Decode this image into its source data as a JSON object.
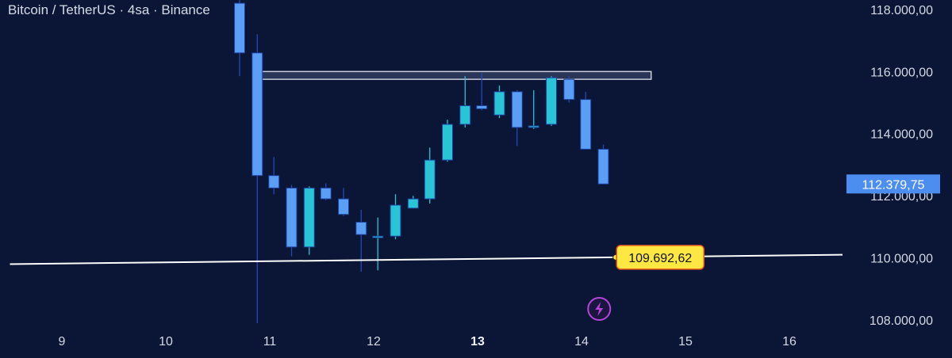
{
  "header": {
    "title": "Bitcoin / TetherUS · 4sa · Binance"
  },
  "chart_data": {
    "type": "candlestick",
    "symbol": "Bitcoin / TetherUS",
    "interval": "4sa",
    "exchange": "Binance",
    "y_axis": {
      "range": [
        107950,
        118150
      ],
      "ticks": [
        {
          "value": 118000,
          "label": "118.000,00"
        },
        {
          "value": 116000,
          "label": "116.000,00"
        },
        {
          "value": 114000,
          "label": "114.000,00"
        },
        {
          "value": 112000,
          "label": "112.000,00"
        },
        {
          "value": 110000,
          "label": "110.000,00"
        },
        {
          "value": 108000,
          "label": "108.000,00"
        }
      ]
    },
    "x_axis": {
      "range": [
        8.5,
        16.5
      ],
      "ticks": [
        {
          "value": 9,
          "label": "9",
          "bold": false
        },
        {
          "value": 10,
          "label": "10",
          "bold": false
        },
        {
          "value": 11,
          "label": "11",
          "bold": false
        },
        {
          "value": 12,
          "label": "12",
          "bold": false
        },
        {
          "value": 13,
          "label": "13",
          "bold": true
        },
        {
          "value": 14,
          "label": "14",
          "bold": false
        },
        {
          "value": 15,
          "label": "15",
          "bold": false
        },
        {
          "value": 16,
          "label": "16",
          "bold": false
        }
      ]
    },
    "candles": [
      {
        "t": 10.71,
        "o": 118200,
        "h": 118300,
        "l": 115850,
        "c": 116600
      },
      {
        "t": 10.88,
        "o": 116600,
        "h": 117200,
        "l": 107900,
        "c": 112650
      },
      {
        "t": 11.04,
        "o": 112650,
        "h": 113250,
        "l": 112050,
        "c": 112250
      },
      {
        "t": 11.21,
        "o": 112250,
        "h": 112350,
        "l": 110050,
        "c": 110350
      },
      {
        "t": 11.38,
        "o": 110350,
        "h": 112300,
        "l": 110100,
        "c": 112250
      },
      {
        "t": 11.54,
        "o": 112250,
        "h": 112400,
        "l": 111850,
        "c": 111900
      },
      {
        "t": 11.71,
        "o": 111900,
        "h": 112250,
        "l": 111350,
        "c": 111400
      },
      {
        "t": 11.88,
        "o": 111150,
        "h": 111550,
        "l": 109550,
        "c": 110750
      },
      {
        "t": 12.04,
        "o": 110700,
        "h": 111300,
        "l": 109600,
        "c": 110700
      },
      {
        "t": 12.21,
        "o": 110700,
        "h": 112050,
        "l": 110600,
        "c": 111700
      },
      {
        "t": 12.38,
        "o": 111600,
        "h": 112000,
        "l": 111600,
        "c": 111900
      },
      {
        "t": 12.54,
        "o": 111900,
        "h": 113550,
        "l": 111750,
        "c": 113150
      },
      {
        "t": 12.71,
        "o": 113150,
        "h": 114450,
        "l": 113100,
        "c": 114300
      },
      {
        "t": 12.88,
        "o": 114300,
        "h": 115850,
        "l": 114200,
        "c": 114900
      },
      {
        "t": 13.04,
        "o": 114900,
        "h": 115950,
        "l": 114750,
        "c": 114800
      },
      {
        "t": 13.21,
        "o": 114600,
        "h": 115550,
        "l": 114500,
        "c": 115350
      },
      {
        "t": 13.38,
        "o": 115350,
        "h": 115400,
        "l": 113600,
        "c": 114200
      },
      {
        "t": 13.54,
        "o": 114200,
        "h": 115400,
        "l": 114150,
        "c": 114250
      },
      {
        "t": 13.71,
        "o": 114300,
        "h": 115850,
        "l": 114250,
        "c": 115800
      },
      {
        "t": 13.88,
        "o": 115750,
        "h": 115850,
        "l": 115000,
        "c": 115100
      },
      {
        "t": 14.04,
        "o": 115100,
        "h": 115350,
        "l": 113500,
        "c": 113500
      },
      {
        "t": 14.21,
        "o": 113500,
        "h": 113650,
        "l": 112380,
        "c": 112380
      }
    ],
    "resistance_zone": {
      "x_start": 10.92,
      "x_end": 14.67,
      "y_low": 115750,
      "y_high": 116000
    },
    "support_line": {
      "x_start": 8.5,
      "y_start": 109800,
      "x_end": 16.5,
      "y_end": 110100
    },
    "support_label": {
      "value": 109692.62,
      "text": "109.692,62",
      "x": 14.33
    },
    "last_price": {
      "value": 112379.75,
      "label": "112.379,75"
    },
    "marker_icon": "lightning-icon",
    "colors": {
      "background": "#0b1535",
      "up": "#29c5d6",
      "down": "#5a9ef5",
      "wick_up": "#29c5d6",
      "wick_down": "#2448b8",
      "zone_fill": "#2a3658",
      "zone_border": "#c8ccd8",
      "support_line": "#ffffff",
      "support_label_bg": "#fde843",
      "support_label_border": "#e85a1c",
      "price_badge": "#4c8df0",
      "marker": "#b445d9"
    }
  }
}
